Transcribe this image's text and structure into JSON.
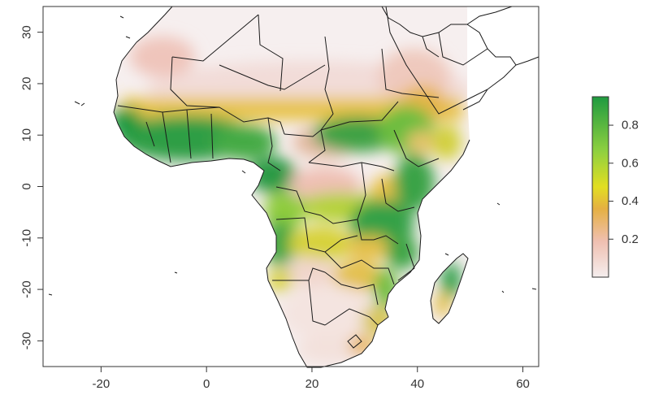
{
  "map": {
    "x_range": [
      -31,
      63
    ],
    "y_range": [
      -35,
      35
    ],
    "x_ticks": [
      {
        "value": -20,
        "label": "-20"
      },
      {
        "value": 0,
        "label": "0"
      },
      {
        "value": 20,
        "label": "20"
      },
      {
        "value": 40,
        "label": "40"
      },
      {
        "value": 60,
        "label": "60"
      }
    ],
    "y_ticks": [
      {
        "value": 30,
        "label": "30"
      },
      {
        "value": 20,
        "label": "20"
      },
      {
        "value": 10,
        "label": "10"
      },
      {
        "value": 0,
        "label": "0"
      },
      {
        "value": -10,
        "label": "-10"
      },
      {
        "value": -20,
        "label": "-20"
      },
      {
        "value": -30,
        "label": "-30"
      }
    ]
  },
  "legend": {
    "range": [
      0,
      0.95
    ],
    "ticks": [
      {
        "value": 0.8,
        "label": "0.8"
      },
      {
        "value": 0.6,
        "label": "0.6"
      },
      {
        "value": 0.4,
        "label": "0.4"
      },
      {
        "value": 0.2,
        "label": "0.2"
      }
    ],
    "colors": {
      "low": "#f5eeee",
      "low_mid": "#efbfb0",
      "mid": "#e5b042",
      "mid_high": "#e2de22",
      "high_mid": "#8ed040",
      "high": "#1f9a40"
    }
  }
}
